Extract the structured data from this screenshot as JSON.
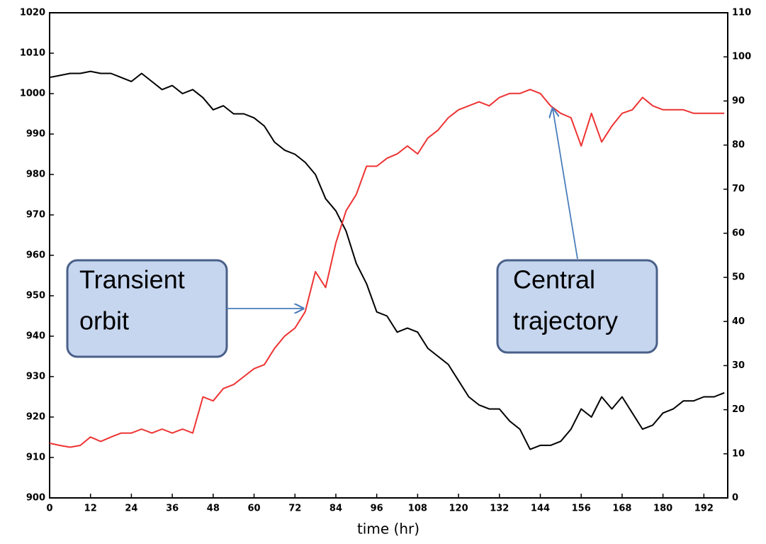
{
  "chart_data": {
    "type": "line",
    "x_label": "time (hr)",
    "x": [
      0,
      3,
      6,
      9,
      12,
      15,
      18,
      21,
      24,
      27,
      30,
      33,
      36,
      39,
      42,
      45,
      48,
      51,
      54,
      57,
      60,
      63,
      66,
      69,
      72,
      75,
      78,
      81,
      84,
      87,
      90,
      93,
      96,
      99,
      102,
      105,
      108,
      111,
      114,
      117,
      120,
      123,
      126,
      129,
      132,
      135,
      138,
      141,
      144,
      147,
      150,
      153,
      156,
      159,
      162,
      165,
      168,
      171,
      174,
      177,
      180,
      183,
      186,
      189,
      192,
      195,
      198
    ],
    "series": [
      {
        "color": "#000000",
        "axis": "y",
        "values": [
          1004,
          1004.5,
          1005,
          1005,
          1005.5,
          1005,
          1005,
          1004,
          1003,
          1005,
          1003,
          1001,
          1002,
          1000,
          1001,
          999,
          996,
          997,
          995,
          995,
          994,
          992,
          988,
          986,
          985,
          983,
          980,
          974,
          971,
          966,
          958,
          953,
          946,
          945,
          941,
          942,
          941,
          937,
          935,
          933,
          929,
          925,
          923,
          922,
          922,
          919,
          917,
          912,
          913,
          913,
          914,
          917,
          922,
          920,
          925,
          922,
          925,
          921,
          917,
          918,
          921,
          922,
          924,
          924,
          925,
          925,
          926
        ]
      },
      {
        "color": "#ee3333",
        "axis": "y2",
        "values": [
          12.4,
          11.9,
          11.5,
          11.9,
          13.8,
          12.8,
          13.8,
          14.7,
          14.7,
          15.6,
          14.7,
          15.6,
          14.7,
          15.6,
          14.7,
          22.9,
          22,
          24.8,
          25.7,
          27.5,
          29.3,
          30.2,
          33.9,
          36.7,
          38.5,
          42.2,
          51.3,
          47.7,
          57.8,
          65.1,
          68.8,
          75.2,
          75.2,
          77,
          78,
          79.8,
          78,
          81.6,
          83.4,
          86.2,
          88,
          88.9,
          89.8,
          88.9,
          90.8,
          91.7,
          91.7,
          92.6,
          91.7,
          88.9,
          87.2,
          86.2,
          79.8,
          87.2,
          80.7,
          84.3,
          87.2,
          88,
          90.8,
          88.9,
          88,
          88,
          88,
          87.2,
          87.2,
          87.2,
          87.2
        ]
      }
    ],
    "xlim": [
      0,
      199
    ],
    "xticks": [
      0,
      12,
      24,
      36,
      48,
      60,
      72,
      84,
      96,
      108,
      120,
      132,
      144,
      156,
      168,
      180,
      192
    ],
    "ylim": [
      900,
      1020
    ],
    "yticks": [
      900,
      910,
      920,
      930,
      940,
      950,
      960,
      970,
      980,
      990,
      1000,
      1010,
      1020
    ],
    "y2lim": [
      0,
      110
    ],
    "y2ticks": [
      0,
      10,
      20,
      30,
      40,
      50,
      60,
      70,
      80,
      90,
      100,
      110
    ],
    "annotations": [
      {
        "lines": [
          "Transient",
          "orbit"
        ]
      },
      {
        "lines": [
          "Central",
          "trajectory"
        ]
      }
    ]
  }
}
